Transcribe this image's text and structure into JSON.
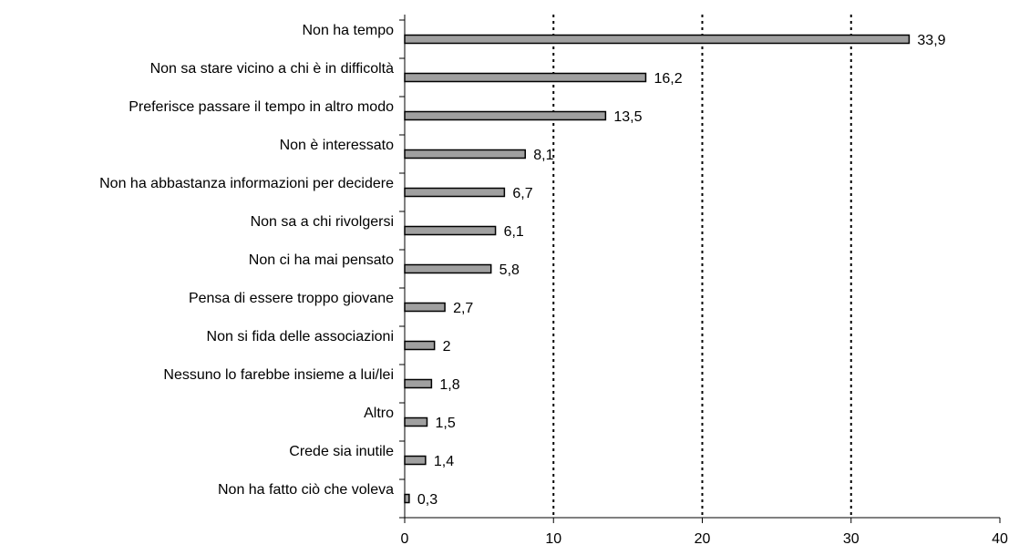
{
  "chart_data": {
    "type": "barh",
    "categories": [
      "Non ha tempo",
      "Non sa stare vicino a chi è in difficoltà",
      "Preferisce passare il tempo in altro modo",
      "Non è interessato",
      "Non ha abbastanza informazioni per decidere",
      "Non sa a chi rivolgersi",
      "Non ci ha mai pensato",
      "Pensa di essere troppo giovane",
      "Non si fida delle associazioni",
      "Nessuno lo farebbe insieme a lui/lei",
      "Altro",
      "Crede sia inutile",
      "Non ha fatto ciò che voleva"
    ],
    "values": [
      33.9,
      16.2,
      13.5,
      8.1,
      6.7,
      6.1,
      5.8,
      2.7,
      2,
      1.8,
      1.5,
      1.4,
      0.3
    ],
    "value_labels": [
      "33,9",
      "16,2",
      "13,5",
      "8,1",
      "6,7",
      "6,1",
      "5,8",
      "2,7",
      "2",
      "1,8",
      "1,5",
      "1,4",
      "0,3"
    ],
    "color": "#a0a0a0",
    "xlim": [
      0,
      40
    ],
    "xticks": [
      0,
      10,
      20,
      30,
      40
    ],
    "grid": true
  }
}
